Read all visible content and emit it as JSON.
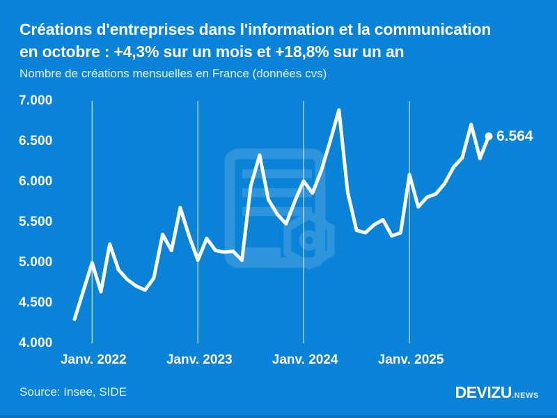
{
  "title_line1": "Créations d'entreprises dans l'information et la communication",
  "title_line2": "en octobre : +4,3% sur un mois et +18,8% sur un an",
  "subtitle": "Nombre de créations mensuelles en France (données cvs)",
  "source": "Source: Insee, SIDE",
  "brand": {
    "name": "DEVIZU",
    "suffix": ".NEWS"
  },
  "end_label": "6.564",
  "colors": {
    "background": "#0983d8",
    "line": "#ffffff",
    "text": "#ffffff",
    "gridline": "rgba(255,255,255,0.7)",
    "watermark_opacity": "0.15",
    "bottom_strip": "#0673c0"
  },
  "chart_data": {
    "type": "line",
    "title": "Créations d'entreprises dans l'information et la communication en octobre : +4,3% sur un mois et +18,8% sur un an",
    "subtitle": "Nombre de créations mensuelles en France (données cvs)",
    "xlabel": "",
    "ylabel": "Nombre de créations mensuelles",
    "ylim": [
      4000,
      7000
    ],
    "grid": "vertical-only",
    "legend": "none",
    "x": [
      "Nov. 2021",
      "Déc. 2021",
      "Janv. 2022",
      "Févr. 2022",
      "Mars 2022",
      "Avr. 2022",
      "Mai 2022",
      "Juin 2022",
      "Juil. 2022",
      "Août 2022",
      "Sept. 2022",
      "Oct. 2022",
      "Nov. 2022",
      "Déc. 2022",
      "Janv. 2023",
      "Févr. 2023",
      "Mars 2023",
      "Avr. 2023",
      "Mai 2023",
      "Juin 2023",
      "Juil. 2023",
      "Août 2023",
      "Sept. 2023",
      "Oct. 2023",
      "Nov. 2023",
      "Déc. 2023",
      "Janv. 2024",
      "Févr. 2024",
      "Mars 2024",
      "Avr. 2024",
      "Mai 2024",
      "Juin 2024",
      "Juil. 2024",
      "Août 2024",
      "Sept. 2024",
      "Oct. 2024",
      "Nov. 2024",
      "Déc. 2024",
      "Janv. 2025",
      "Févr. 2025",
      "Mars 2025",
      "Avr. 2025",
      "Mai 2025",
      "Juin 2025",
      "Juil. 2025",
      "Août 2025",
      "Sept. 2025",
      "Oct. 2025"
    ],
    "values": [
      4300,
      4650,
      5000,
      4640,
      5230,
      4910,
      4790,
      4710,
      4660,
      4810,
      5350,
      5150,
      5680,
      5330,
      5030,
      5300,
      5150,
      5130,
      5140,
      5030,
      5950,
      6330,
      5780,
      5600,
      5480,
      5760,
      6010,
      5860,
      6140,
      6500,
      6890,
      5870,
      5400,
      5370,
      5470,
      5530,
      5330,
      5370,
      6090,
      5690,
      5810,
      5850,
      5980,
      6180,
      6300,
      6710,
      6290,
      6564
    ],
    "ytick_values": [
      7000,
      6500,
      6000,
      5500,
      5000,
      4500,
      4000
    ],
    "ytick_labels": [
      "7.000",
      "6.500",
      "6.000",
      "5.500",
      "5.000",
      "4.500",
      "4.000"
    ],
    "xtick_labels": [
      "Janv. 2022",
      "Janv. 2023",
      "Janv. 2024",
      "Janv. 2025"
    ],
    "xtick_month_index": [
      2,
      14,
      26,
      38
    ],
    "last_point": {
      "label": "6.564",
      "value": 6564,
      "month": "Oct. 2025"
    }
  }
}
